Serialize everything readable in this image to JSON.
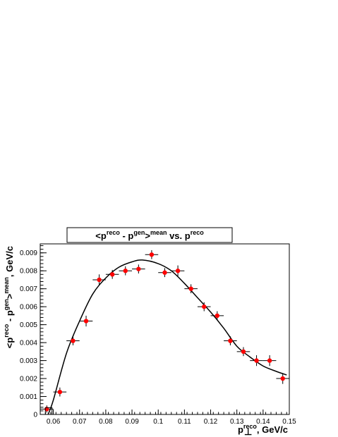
{
  "chart_data": {
    "type": "scatter",
    "title": "<p⊥reco - p⊥gen>mean vs. p⊥reco",
    "title_parts": {
      "open": "<p",
      "sup1": "reco",
      "mid": " - p",
      "sup2": "gen",
      "close": ">",
      "sup3": "mean",
      "tail": " vs. p",
      "sup4": "reco"
    },
    "xlabel": "p⊥reco, GeV/c",
    "xlabel_parts": {
      "base": "p",
      "sup": "reco",
      "tail": ", GeV/c"
    },
    "ylabel": "<p⊥reco - p⊥gen>mean, GeV/c",
    "ylabel_parts": {
      "open": "<p",
      "sup1": "reco",
      "mid": " - p",
      "sup2": "gen",
      "close": ">",
      "sup3": "mean",
      "tail": ", GeV/c"
    },
    "perp_symbol": "⊥",
    "xlim": [
      0.055,
      0.15
    ],
    "ylim": [
      0,
      0.0095
    ],
    "xticks": [
      0.06,
      0.07,
      0.08,
      0.09,
      0.1,
      0.11,
      0.12,
      0.13,
      0.14,
      0.15
    ],
    "xtick_labels": [
      "0.06",
      "0.07",
      "0.08",
      "0.09",
      "0.1",
      "0.11",
      "0.12",
      "0.13",
      "0.14",
      "0.15"
    ],
    "yticks": [
      0,
      0.001,
      0.002,
      0.003,
      0.004,
      0.005,
      0.006,
      0.007,
      0.008,
      0.009
    ],
    "ytick_labels": [
      "0",
      "0.001",
      "0.002",
      "0.003",
      "0.004",
      "0.005",
      "0.006",
      "0.007",
      "0.008",
      "0.009"
    ],
    "grid": false,
    "legend": "none",
    "marker_color": "#ff0000",
    "x_error": 0.0025,
    "x": [
      0.0575,
      0.0625,
      0.0675,
      0.0725,
      0.0775,
      0.0825,
      0.0875,
      0.0925,
      0.0975,
      0.1025,
      0.1075,
      0.1125,
      0.1175,
      0.1225,
      0.1275,
      0.1325,
      0.1375,
      0.1425,
      0.1475
    ],
    "y": [
      0.0003,
      0.00125,
      0.0041,
      0.0052,
      0.0075,
      0.0078,
      0.008,
      0.0081,
      0.0089,
      0.0079,
      0.008,
      0.007,
      0.006,
      0.0055,
      0.0041,
      0.0035,
      0.003,
      0.003,
      0.002
    ],
    "y_error": [
      0.0002,
      0.00025,
      0.00025,
      0.0003,
      0.0003,
      0.00025,
      0.00025,
      0.00025,
      0.00025,
      0.00025,
      0.0003,
      0.00025,
      0.00025,
      0.00025,
      0.00025,
      0.00025,
      0.0003,
      0.0003,
      0.0003
    ],
    "fit_curve": {
      "x": [
        0.058,
        0.06,
        0.065,
        0.07,
        0.075,
        0.08,
        0.085,
        0.09,
        0.094,
        0.1,
        0.105,
        0.11,
        0.115,
        0.12,
        0.125,
        0.13,
        0.135,
        0.14,
        0.145,
        0.149
      ],
      "y": [
        0,
        0.0008,
        0.0034,
        0.0052,
        0.0067,
        0.0076,
        0.0082,
        0.0085,
        0.0086,
        0.0084,
        0.008,
        0.0073,
        0.0065,
        0.0057,
        0.0048,
        0.0038,
        0.0032,
        0.0027,
        0.0024,
        0.0022
      ]
    }
  }
}
